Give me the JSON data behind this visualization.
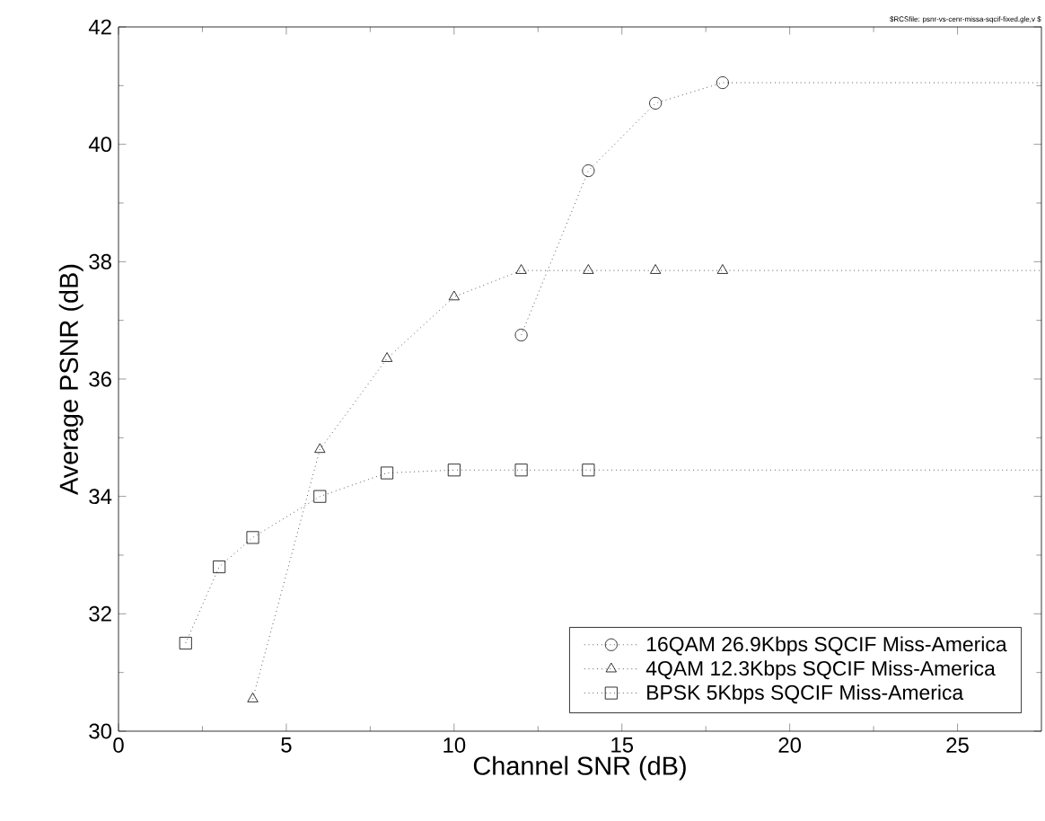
{
  "chart_data": {
    "type": "line",
    "xlabel": "Channel SNR (dB)",
    "ylabel": "Average PSNR (dB)",
    "annotations": [
      "$RCSfile: psnr-vs-cenr-missa-sqcif-fixed.gle,v $"
    ],
    "xlim": [
      0,
      27.5
    ],
    "ylim": [
      30,
      42
    ],
    "xticks": [
      0,
      5,
      10,
      15,
      20,
      25
    ],
    "yticks": [
      30,
      32,
      34,
      36,
      38,
      40,
      42
    ],
    "legend": "bottom right",
    "line_style": "dotted",
    "grid": false,
    "series": [
      {
        "name": "16QAM 26.9Kbps SQCIF Miss-America",
        "color": "#000000",
        "marker": "circle",
        "x": [
          12,
          14,
          16,
          18,
          27.5
        ],
        "values": [
          36.75,
          39.55,
          40.7,
          41.05,
          41.05
        ]
      },
      {
        "name": "4QAM 12.3Kbps SQCIF Miss-America",
        "color": "#000000",
        "marker": "triangle",
        "x": [
          4,
          6,
          8,
          10,
          12,
          14,
          16,
          18,
          27.5
        ],
        "values": [
          30.55,
          34.8,
          36.35,
          37.4,
          37.85,
          37.85,
          37.85,
          37.85,
          37.85
        ]
      },
      {
        "name": "BPSK 5Kbps SQCIF Miss-America",
        "color": "#000000",
        "marker": "square",
        "x": [
          2,
          3,
          4,
          6,
          8,
          10,
          12,
          14,
          27.5
        ],
        "values": [
          31.5,
          32.8,
          33.3,
          34.0,
          34.4,
          34.45,
          34.45,
          34.45,
          34.45
        ]
      }
    ]
  }
}
